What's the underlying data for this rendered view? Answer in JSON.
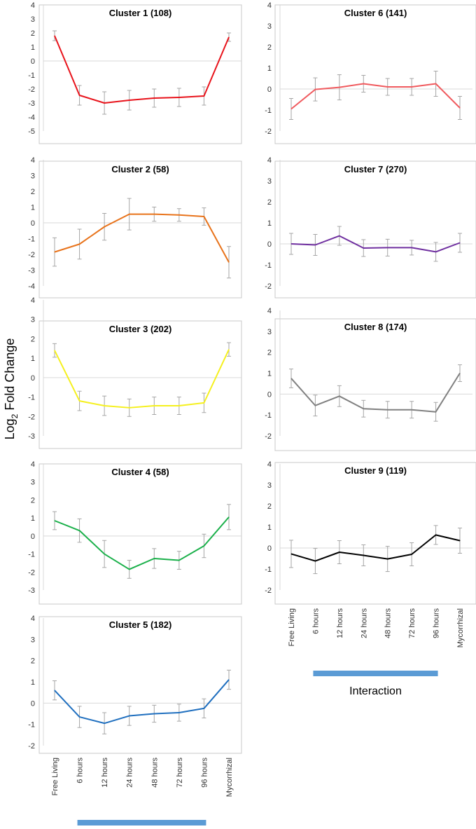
{
  "figure": {
    "y_axis_label": "Log",
    "y_axis_label_subscript": "2",
    "y_axis_label_suffix": " Fold Change",
    "interaction_label": "Interaction",
    "interaction_bar_color": "#5b9bd5"
  },
  "chart_data": [
    {
      "type": "line",
      "title": "Cluster 1 (108)",
      "color": "#e8131b",
      "categories": [
        "Free Living",
        "6 hours",
        "12 hours",
        "24 hours",
        "48 hours",
        "72 hours",
        "96 hours",
        "Mycorrhizal"
      ],
      "values": [
        1.8,
        -2.45,
        -3.0,
        -2.8,
        -2.65,
        -2.6,
        -2.5,
        1.7
      ],
      "errors": [
        0.35,
        0.7,
        0.8,
        0.7,
        0.65,
        0.65,
        0.65,
        0.3
      ],
      "ylim": [
        -5,
        4
      ],
      "yticks": [
        -5,
        -4,
        -3,
        -2,
        -1,
        0,
        1,
        2,
        3,
        4
      ]
    },
    {
      "type": "line",
      "title": "Cluster 2 (58)",
      "color": "#e8731b",
      "categories": [
        "Free Living",
        "6 hours",
        "12 hours",
        "24 hours",
        "48 hours",
        "72 hours",
        "96 hours",
        "Mycorrhizal"
      ],
      "values": [
        -1.85,
        -1.35,
        -0.25,
        0.55,
        0.55,
        0.5,
        0.4,
        -2.5
      ],
      "errors": [
        0.9,
        0.95,
        0.85,
        1.0,
        0.45,
        0.4,
        0.55,
        1.0
      ],
      "ylim": [
        -4,
        4
      ],
      "yticks": [
        -4,
        -3,
        -2,
        -1,
        0,
        1,
        2,
        3,
        4
      ]
    },
    {
      "type": "line",
      "title": "Cluster 3 (202)",
      "color": "#f5f01e",
      "categories": [
        "Free Living",
        "6 hours",
        "12 hours",
        "24 hours",
        "48 hours",
        "72 hours",
        "96 hours",
        "Mycorrhizal"
      ],
      "values": [
        1.4,
        -1.2,
        -1.45,
        -1.55,
        -1.45,
        -1.45,
        -1.3,
        1.45
      ],
      "errors": [
        0.35,
        0.5,
        0.5,
        0.45,
        0.45,
        0.45,
        0.5,
        0.35
      ],
      "ylim": [
        -3,
        4
      ],
      "yticks": [
        -3,
        -2,
        -1,
        0,
        1,
        2,
        3,
        4
      ]
    },
    {
      "type": "line",
      "title": "Cluster 4 (58)",
      "color": "#1ab04a",
      "categories": [
        "Free Living",
        "6 hours",
        "12 hours",
        "24 hours",
        "48 hours",
        "72 hours",
        "96 hours",
        "Mycorrhizal"
      ],
      "values": [
        0.85,
        0.3,
        -1.0,
        -1.85,
        -1.25,
        -1.35,
        -0.55,
        1.05
      ],
      "errors": [
        0.5,
        0.65,
        0.75,
        0.5,
        0.55,
        0.5,
        0.65,
        0.7
      ],
      "ylim": [
        -3,
        4
      ],
      "yticks": [
        -3,
        -2,
        -1,
        0,
        1,
        2,
        3,
        4
      ]
    },
    {
      "type": "line",
      "title": "Cluster 5 (182)",
      "color": "#1f6fbf",
      "categories": [
        "Free Living",
        "6 hours",
        "12 hours",
        "24 hours",
        "48 hours",
        "72 hours",
        "96 hours",
        "Mycorrhizal"
      ],
      "values": [
        0.6,
        -0.65,
        -0.95,
        -0.6,
        -0.5,
        -0.45,
        -0.25,
        1.1
      ],
      "errors": [
        0.45,
        0.5,
        0.5,
        0.45,
        0.4,
        0.4,
        0.45,
        0.45
      ],
      "ylim": [
        -2,
        4
      ],
      "yticks": [
        -2,
        -1,
        0,
        1,
        2,
        3,
        4
      ]
    },
    {
      "type": "line",
      "title": "Cluster 6 (141)",
      "color": "#f05a5e",
      "categories": [
        "Free Living",
        "6 hours",
        "12 hours",
        "24 hours",
        "48 hours",
        "72 hours",
        "96 hours",
        "Mycorrhizal"
      ],
      "values": [
        -0.95,
        -0.02,
        0.08,
        0.25,
        0.1,
        0.1,
        0.25,
        -0.9
      ],
      "errors": [
        0.5,
        0.55,
        0.6,
        0.4,
        0.4,
        0.4,
        0.6,
        0.55
      ],
      "ylim": [
        -2,
        4
      ],
      "yticks": [
        -2,
        -1,
        0,
        1,
        2,
        3,
        4
      ]
    },
    {
      "type": "line",
      "title": "Cluster 7 (270)",
      "color": "#7030a0",
      "categories": [
        "Free Living",
        "6 hours",
        "12 hours",
        "24 hours",
        "48 hours",
        "72 hours",
        "96 hours",
        "Mycorrhizal"
      ],
      "values": [
        0.0,
        -0.05,
        0.38,
        -0.2,
        -0.18,
        -0.18,
        -0.38,
        0.05
      ],
      "errors": [
        0.5,
        0.5,
        0.45,
        0.4,
        0.4,
        0.35,
        0.45,
        0.45
      ],
      "ylim": [
        -2,
        4
      ],
      "yticks": [
        -2,
        -1,
        0,
        1,
        2,
        3,
        4
      ]
    },
    {
      "type": "line",
      "title": "Cluster 8 (174)",
      "color": "#808080",
      "categories": [
        "Free Living",
        "6 hours",
        "12 hours",
        "24 hours",
        "48 hours",
        "72 hours",
        "96 hours",
        "Mycorrhizal"
      ],
      "values": [
        0.75,
        -0.55,
        -0.1,
        -0.7,
        -0.75,
        -0.75,
        -0.85,
        1.0
      ],
      "errors": [
        0.45,
        0.5,
        0.5,
        0.4,
        0.4,
        0.4,
        0.45,
        0.4
      ],
      "ylim": [
        -2,
        4
      ],
      "yticks": [
        -2,
        -1,
        0,
        1,
        2,
        3,
        4
      ]
    },
    {
      "type": "line",
      "title": "Cluster 9 (119)",
      "color": "#000000",
      "categories": [
        "Free Living",
        "6 hours",
        "12 hours",
        "24 hours",
        "48 hours",
        "72 hours",
        "96 hours",
        "Mycorrhizal"
      ],
      "values": [
        -0.28,
        -0.62,
        -0.2,
        -0.35,
        -0.52,
        -0.3,
        0.62,
        0.35
      ],
      "errors": [
        0.65,
        0.6,
        0.55,
        0.5,
        0.6,
        0.55,
        0.45,
        0.6
      ],
      "ylim": [
        -2,
        4
      ],
      "yticks": [
        -2,
        -1,
        0,
        1,
        2,
        3,
        4
      ]
    }
  ]
}
